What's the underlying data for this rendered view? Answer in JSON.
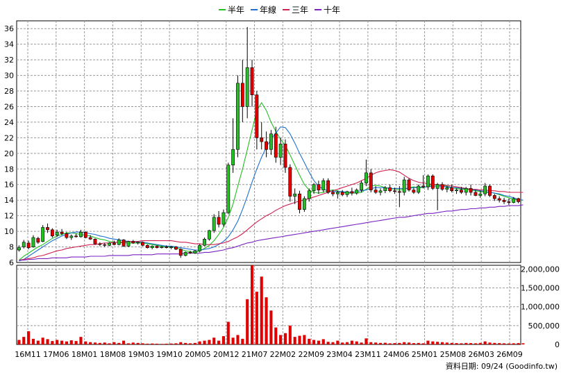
{
  "legend": [
    {
      "label": "半年",
      "color": "#22c022"
    },
    {
      "label": "年線",
      "color": "#1f6fd0"
    },
    {
      "label": "三年",
      "color": "#d02050"
    },
    {
      "label": "十年",
      "color": "#7a22c0"
    }
  ],
  "footer": "資料日期: 09/24 (Goodinfo.tw)",
  "colors": {
    "up": "#22c022",
    "down": "#e00000",
    "grid": "#999999",
    "volume": "#e00000"
  },
  "chart_data": [
    {
      "type": "candlestick",
      "ylim": [
        6,
        37
      ],
      "yticks": [
        6,
        8,
        10,
        12,
        14,
        16,
        18,
        20,
        22,
        24,
        26,
        28,
        30,
        32,
        34,
        36
      ],
      "grid": true,
      "legend_position": "top-center",
      "x_tick_labels": [
        "16M11",
        "17M06",
        "18M01",
        "18M08",
        "19M03",
        "19M10",
        "20M05",
        "20M12",
        "21M07",
        "22M02",
        "22M09",
        "23M04",
        "23M11",
        "24M06",
        "25M01",
        "25M08",
        "26M03",
        "26M09"
      ],
      "candles_ohlc": [
        [
          7.6,
          8.2,
          7.4,
          7.9
        ],
        [
          8.0,
          8.9,
          7.8,
          8.6
        ],
        [
          8.5,
          8.8,
          7.7,
          7.9
        ],
        [
          8.0,
          9.5,
          7.9,
          9.2
        ],
        [
          9.1,
          9.3,
          8.4,
          8.6
        ],
        [
          8.7,
          10.8,
          8.6,
          10.5
        ],
        [
          10.5,
          11.0,
          9.8,
          10.2
        ],
        [
          10.2,
          10.4,
          9.2,
          9.4
        ],
        [
          9.5,
          10.2,
          9.3,
          9.9
        ],
        [
          9.9,
          10.3,
          9.5,
          9.7
        ],
        [
          9.7,
          9.9,
          9.0,
          9.2
        ],
        [
          9.2,
          9.6,
          8.9,
          9.4
        ],
        [
          9.4,
          9.7,
          9.2,
          9.3
        ],
        [
          9.3,
          10.2,
          9.2,
          9.9
        ],
        [
          9.9,
          10.0,
          9.1,
          9.2
        ],
        [
          9.2,
          9.5,
          8.9,
          9.0
        ],
        [
          9.0,
          9.1,
          8.3,
          8.4
        ],
        [
          8.4,
          8.6,
          8.1,
          8.3
        ],
        [
          8.3,
          8.5,
          8.0,
          8.2
        ],
        [
          8.2,
          8.6,
          8.1,
          8.5
        ],
        [
          8.5,
          8.8,
          8.2,
          8.3
        ],
        [
          8.3,
          9.1,
          8.2,
          8.9
        ],
        [
          8.9,
          9.0,
          8.0,
          8.1
        ],
        [
          8.1,
          8.8,
          8.0,
          8.7
        ],
        [
          8.7,
          8.9,
          8.4,
          8.5
        ],
        [
          8.5,
          8.7,
          8.3,
          8.6
        ],
        [
          8.6,
          8.7,
          8.1,
          8.2
        ],
        [
          8.2,
          8.3,
          7.8,
          7.9
        ],
        [
          7.9,
          8.2,
          7.7,
          8.1
        ],
        [
          8.1,
          8.2,
          7.8,
          7.9
        ],
        [
          7.9,
          8.1,
          7.8,
          8.0
        ],
        [
          8.0,
          8.2,
          7.8,
          7.9
        ],
        [
          7.9,
          8.1,
          7.7,
          8.0
        ],
        [
          8.0,
          8.1,
          7.6,
          7.7
        ],
        [
          7.7,
          7.8,
          6.6,
          6.9
        ],
        [
          6.9,
          7.4,
          6.8,
          7.3
        ],
        [
          7.3,
          7.5,
          7.1,
          7.2
        ],
        [
          7.2,
          7.6,
          7.1,
          7.5
        ],
        [
          7.5,
          8.4,
          7.3,
          8.2
        ],
        [
          8.2,
          9.2,
          8.1,
          9.0
        ],
        [
          9.0,
          10.2,
          8.8,
          10.1
        ],
        [
          10.1,
          12.2,
          9.8,
          11.8
        ],
        [
          11.8,
          12.6,
          10.5,
          10.9
        ],
        [
          10.9,
          12.8,
          10.6,
          12.4
        ],
        [
          12.4,
          18.8,
          12.2,
          18.5
        ],
        [
          18.5,
          24.5,
          17.5,
          20.5
        ],
        [
          20.5,
          30.0,
          19.5,
          29.0
        ],
        [
          29.0,
          32.0,
          24.0,
          26.0
        ],
        [
          26.0,
          36.2,
          24.5,
          31.0
        ],
        [
          31.0,
          32.0,
          26.0,
          27.5
        ],
        [
          27.5,
          28.0,
          20.5,
          22.0
        ],
        [
          22.0,
          24.0,
          20.5,
          21.5
        ],
        [
          21.5,
          22.8,
          19.5,
          20.5
        ],
        [
          20.5,
          23.0,
          19.8,
          22.5
        ],
        [
          22.5,
          23.4,
          18.8,
          19.5
        ],
        [
          19.5,
          22.0,
          18.5,
          21.2
        ],
        [
          21.2,
          21.8,
          17.5,
          18.2
        ],
        [
          18.2,
          18.6,
          13.8,
          14.5
        ],
        [
          14.5,
          15.5,
          13.5,
          14.8
        ],
        [
          14.8,
          15.2,
          12.3,
          12.8
        ],
        [
          12.8,
          14.5,
          12.5,
          14.2
        ],
        [
          14.2,
          15.5,
          13.8,
          15.2
        ],
        [
          15.2,
          16.2,
          14.8,
          16.0
        ],
        [
          16.0,
          16.5,
          14.8,
          15.3
        ],
        [
          15.3,
          16.8,
          15.0,
          16.5
        ],
        [
          16.5,
          16.8,
          14.8,
          15.0
        ],
        [
          15.0,
          15.3,
          14.5,
          14.8
        ],
        [
          14.8,
          15.2,
          14.2,
          15.0
        ],
        [
          15.0,
          15.3,
          14.5,
          14.7
        ],
        [
          14.7,
          15.2,
          14.4,
          15.1
        ],
        [
          15.1,
          15.6,
          14.6,
          14.9
        ],
        [
          14.9,
          15.5,
          14.7,
          15.3
        ],
        [
          15.3,
          16.5,
          15.0,
          16.2
        ],
        [
          16.2,
          19.2,
          15.8,
          17.5
        ],
        [
          17.5,
          18.0,
          15.0,
          15.3
        ],
        [
          15.3,
          15.8,
          14.8,
          15.0
        ],
        [
          15.0,
          15.5,
          14.6,
          15.2
        ],
        [
          15.2,
          15.8,
          14.9,
          15.6
        ],
        [
          15.6,
          16.0,
          15.0,
          15.2
        ],
        [
          15.2,
          15.6,
          14.8,
          15.1
        ],
        [
          15.1,
          15.8,
          13.1,
          15.0
        ],
        [
          15.0,
          17.0,
          14.6,
          16.6
        ],
        [
          16.6,
          16.8,
          15.1,
          15.3
        ],
        [
          15.3,
          15.6,
          14.8,
          15.0
        ],
        [
          15.0,
          16.0,
          14.8,
          15.8
        ],
        [
          15.8,
          17.2,
          15.5,
          15.7
        ],
        [
          15.7,
          17.3,
          15.3,
          17.1
        ],
        [
          17.1,
          17.3,
          15.3,
          15.5
        ],
        [
          15.5,
          16.2,
          12.7,
          16.0
        ],
        [
          16.0,
          16.3,
          15.2,
          15.4
        ],
        [
          15.4,
          15.8,
          15.0,
          15.6
        ],
        [
          15.6,
          16.0,
          15.0,
          15.2
        ],
        [
          15.2,
          15.5,
          14.8,
          15.3
        ],
        [
          15.3,
          15.7,
          14.8,
          15.0
        ],
        [
          15.0,
          15.7,
          14.6,
          15.5
        ],
        [
          15.5,
          16.0,
          14.6,
          15.0
        ],
        [
          15.0,
          15.3,
          14.5,
          14.6
        ],
        [
          14.6,
          15.2,
          14.3,
          14.8
        ],
        [
          14.8,
          16.2,
          14.5,
          15.8
        ],
        [
          15.8,
          16.0,
          14.4,
          14.6
        ],
        [
          14.6,
          14.8,
          13.9,
          14.2
        ],
        [
          14.2,
          14.5,
          13.7,
          14.0
        ],
        [
          14.0,
          14.3,
          13.5,
          13.8
        ],
        [
          13.8,
          14.2,
          13.4,
          13.7
        ],
        [
          13.7,
          14.4,
          13.6,
          14.2
        ],
        [
          14.2,
          14.3,
          13.6,
          13.8
        ]
      ],
      "moving_averages": [
        {
          "name": "半年",
          "values": [
            6.3,
            6.8,
            7.2,
            7.6,
            8.0,
            8.3,
            8.7,
            9.1,
            9.4,
            9.6,
            9.8,
            9.8,
            9.7,
            9.6,
            9.5,
            9.4,
            9.2,
            9.0,
            8.9,
            8.7,
            8.6,
            8.6,
            8.5,
            8.5,
            8.5,
            8.5,
            8.5,
            8.4,
            8.3,
            8.2,
            8.1,
            8.0,
            8.0,
            7.9,
            7.7,
            7.5,
            7.4,
            7.3,
            7.5,
            7.8,
            8.2,
            8.8,
            9.6,
            10.5,
            11.8,
            13.5,
            15.8,
            18.0,
            20.5,
            23.0,
            25.5,
            26.5,
            25.5,
            24.0,
            22.8,
            21.8,
            21.0,
            19.8,
            18.5,
            17.2,
            16.0,
            15.3,
            15.0,
            14.9,
            15.0,
            15.2,
            15.3,
            15.2,
            15.0,
            14.9,
            14.9,
            14.9,
            15.0,
            15.4,
            15.8,
            15.9,
            15.8,
            15.6,
            15.5,
            15.4,
            15.3,
            15.4,
            15.6,
            15.7,
            15.6,
            15.6,
            15.8,
            16.0,
            16.0,
            15.9,
            15.8,
            15.6,
            15.5,
            15.4,
            15.4,
            15.3,
            15.2,
            15.1,
            15.0,
            15.0,
            14.9,
            14.7,
            14.5,
            14.3,
            14.1,
            14.0,
            14.0
          ]
        },
        {
          "name": "年線",
          "values": [
            6.2,
            6.4,
            6.8,
            7.2,
            7.6,
            8.0,
            8.4,
            8.8,
            9.1,
            9.4,
            9.6,
            9.8,
            9.9,
            9.9,
            9.8,
            9.7,
            9.6,
            9.4,
            9.3,
            9.1,
            9.0,
            8.9,
            8.8,
            8.7,
            8.7,
            8.6,
            8.6,
            8.5,
            8.4,
            8.3,
            8.2,
            8.1,
            8.1,
            8.0,
            7.9,
            7.8,
            7.7,
            7.6,
            7.6,
            7.7,
            7.8,
            8.0,
            8.3,
            8.7,
            9.3,
            10.2,
            11.3,
            12.8,
            14.5,
            16.3,
            18.0,
            19.5,
            20.8,
            21.8,
            22.6,
            23.4,
            23.3,
            22.5,
            21.3,
            20.0,
            18.8,
            17.6,
            16.5,
            15.8,
            15.4,
            15.2,
            15.1,
            15.1,
            15.1,
            15.0,
            15.0,
            15.1,
            15.2,
            15.3,
            15.5,
            15.6,
            15.6,
            15.6,
            15.5,
            15.5,
            15.5,
            15.5,
            15.5,
            15.6,
            15.6,
            15.7,
            15.7,
            15.8,
            15.8,
            15.8,
            15.7,
            15.6,
            15.6,
            15.5,
            15.5,
            15.4,
            15.3,
            15.2,
            15.1,
            15.0,
            14.9,
            14.8,
            14.6,
            14.5,
            14.3,
            14.1,
            14.0
          ]
        },
        {
          "name": "三年",
          "values": [
            6.3,
            6.4,
            6.5,
            6.6,
            6.8,
            6.9,
            7.1,
            7.3,
            7.5,
            7.6,
            7.8,
            7.9,
            8.0,
            8.1,
            8.2,
            8.3,
            8.3,
            8.4,
            8.5,
            8.5,
            8.6,
            8.6,
            8.6,
            8.7,
            8.7,
            8.7,
            8.8,
            8.8,
            8.8,
            8.8,
            8.8,
            8.8,
            8.8,
            8.7,
            8.6,
            8.6,
            8.5,
            8.4,
            8.4,
            8.3,
            8.3,
            8.3,
            8.4,
            8.5,
            8.7,
            9.0,
            9.3,
            9.7,
            10.2,
            10.7,
            11.2,
            11.6,
            12.0,
            12.3,
            12.7,
            13.0,
            13.3,
            13.5,
            13.7,
            13.9,
            14.0,
            14.2,
            14.4,
            14.6,
            14.8,
            15.0,
            15.2,
            15.4,
            15.6,
            15.8,
            16.0,
            16.2,
            16.5,
            16.8,
            17.2,
            17.5,
            17.7,
            17.8,
            17.9,
            17.8,
            17.6,
            17.2,
            16.8,
            16.5,
            16.3,
            16.2,
            16.1,
            16.0,
            16.0,
            15.9,
            15.9,
            15.8,
            15.7,
            15.6,
            15.5,
            15.4,
            15.4,
            15.3,
            15.3,
            15.2,
            15.2,
            15.1,
            15.1,
            15.0,
            15.0,
            15.0,
            15.0
          ]
        },
        {
          "name": "十年",
          "values": [
            6.3,
            6.3,
            6.4,
            6.4,
            6.5,
            6.5,
            6.5,
            6.6,
            6.6,
            6.6,
            6.6,
            6.7,
            6.7,
            6.7,
            6.7,
            6.8,
            6.8,
            6.8,
            6.8,
            6.9,
            6.9,
            6.9,
            6.9,
            6.9,
            7.0,
            7.0,
            7.0,
            7.0,
            7.0,
            7.1,
            7.1,
            7.1,
            7.1,
            7.1,
            7.1,
            7.2,
            7.2,
            7.2,
            7.2,
            7.3,
            7.3,
            7.4,
            7.5,
            7.6,
            7.8,
            7.9,
            8.1,
            8.3,
            8.5,
            8.6,
            8.8,
            8.9,
            9.0,
            9.1,
            9.2,
            9.3,
            9.4,
            9.5,
            9.6,
            9.7,
            9.8,
            9.9,
            10.0,
            10.1,
            10.2,
            10.3,
            10.4,
            10.5,
            10.6,
            10.7,
            10.8,
            10.9,
            11.0,
            11.1,
            11.2,
            11.3,
            11.4,
            11.5,
            11.6,
            11.7,
            11.8,
            11.8,
            11.9,
            12.0,
            12.1,
            12.2,
            12.3,
            12.3,
            12.4,
            12.5,
            12.6,
            12.6,
            12.7,
            12.8,
            12.8,
            12.9,
            12.9,
            13.0,
            13.0,
            13.1,
            13.1,
            13.2,
            13.2,
            13.3,
            13.3,
            13.3,
            13.4
          ]
        }
      ]
    },
    {
      "type": "bar",
      "ylim": [
        0,
        2100000
      ],
      "yticks": [
        0,
        500000,
        1000000,
        1500000,
        2000000
      ],
      "ytick_labels": [
        "0",
        "500,000",
        "1,000,000",
        "1,500,000",
        "2,000,000"
      ],
      "grid": true,
      "volumes": [
        120000,
        200000,
        350000,
        150000,
        100000,
        180000,
        140000,
        90000,
        120000,
        100000,
        80000,
        110000,
        90000,
        200000,
        80000,
        60000,
        50000,
        40000,
        50000,
        30000,
        60000,
        40000,
        100000,
        30000,
        50000,
        40000,
        30000,
        20000,
        25000,
        20000,
        15000,
        20000,
        25000,
        30000,
        60000,
        40000,
        30000,
        40000,
        80000,
        100000,
        120000,
        180000,
        100000,
        220000,
        600000,
        180000,
        250000,
        150000,
        1200000,
        2100000,
        1400000,
        1800000,
        1250000,
        900000,
        450000,
        250000,
        300000,
        500000,
        200000,
        230000,
        250000,
        150000,
        120000,
        100000,
        140000,
        70000,
        60000,
        100000,
        50000,
        60000,
        100000,
        80000,
        50000,
        160000,
        60000,
        50000,
        40000,
        45000,
        30000,
        35000,
        40000,
        60000,
        50000,
        35000,
        40000,
        30000,
        100000,
        80000,
        70000,
        60000,
        50000,
        40000,
        35000,
        30000,
        40000,
        35000,
        30000,
        40000,
        80000,
        50000,
        40000,
        35000,
        30000,
        25000,
        30000,
        35000,
        30000
      ]
    }
  ]
}
